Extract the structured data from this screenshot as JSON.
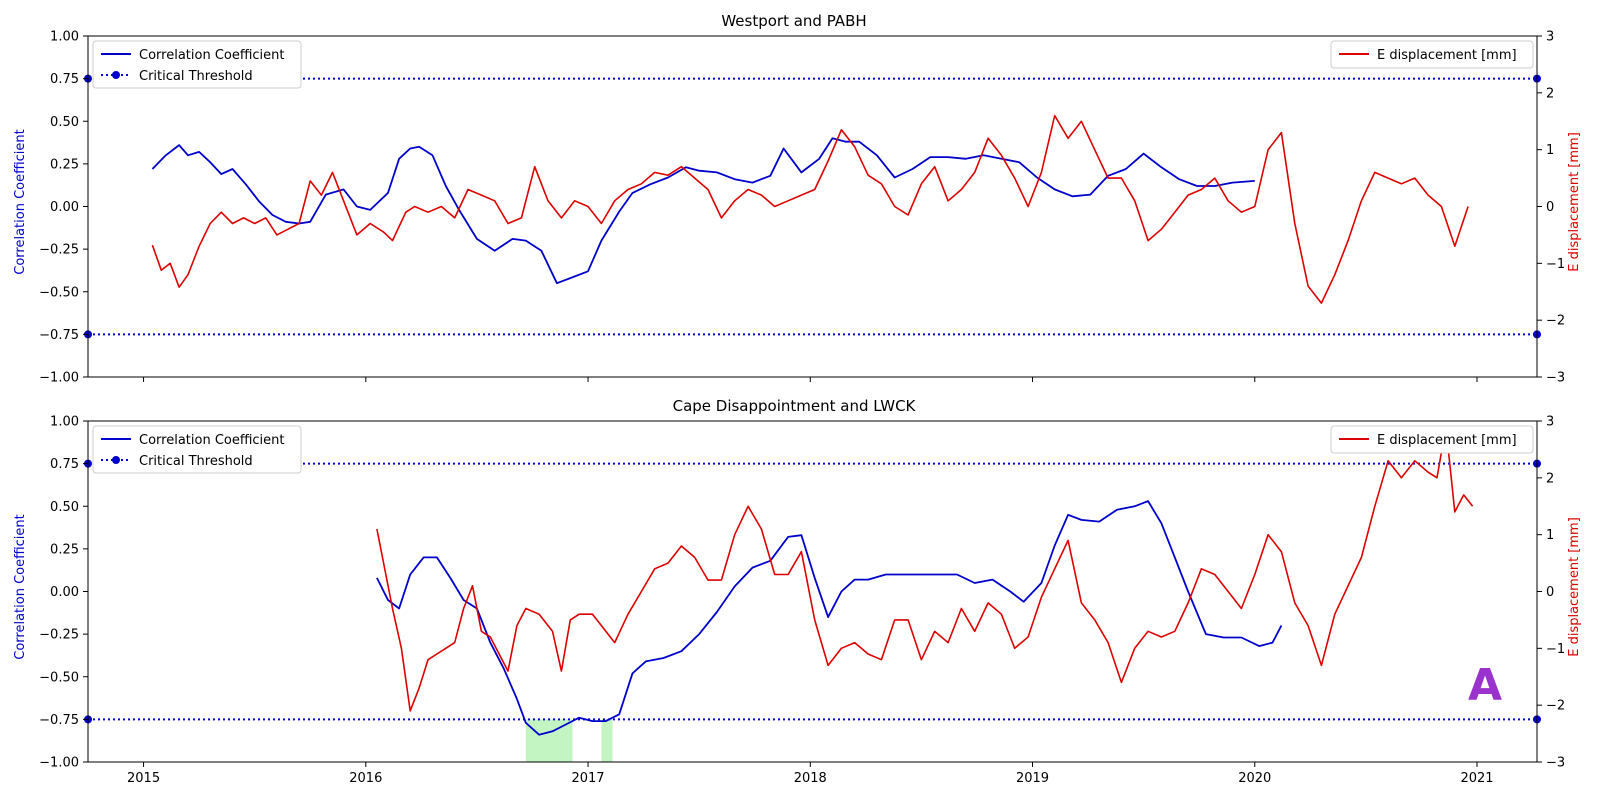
{
  "chart_data": [
    {
      "type": "line",
      "title": "Westport and PABH",
      "ylabel": "Correlation Coefficient",
      "ylabel_right": "E displacement [mm]",
      "xlim": [
        2014.75,
        2021.27
      ],
      "ylim": [
        -1.0,
        1.0
      ],
      "ylim_right": [
        -3,
        3
      ],
      "x_ticks": [
        2015,
        2016,
        2017,
        2018,
        2019,
        2020,
        2021
      ],
      "x_tick_labels": [
        "2015",
        "2016",
        "2017",
        "2018",
        "2019",
        "2020",
        "2021"
      ],
      "show_x_tick_labels": false,
      "y_ticks": [
        -1.0,
        -0.75,
        -0.5,
        -0.25,
        0.0,
        0.25,
        0.5,
        0.75,
        1.0
      ],
      "y_tick_labels": [
        "−1.00",
        "−0.75",
        "−0.50",
        "−0.25",
        "0.00",
        "0.25",
        "0.50",
        "0.75",
        "1.00"
      ],
      "y_ticks_right": [
        -3,
        -2,
        -1,
        0,
        1,
        2,
        3
      ],
      "y_tick_labels_right": [
        "−3",
        "−2",
        "−1",
        "0",
        "1",
        "2",
        "3"
      ],
      "thresholds": [
        0.75,
        -0.75
      ],
      "legend_left": [
        "Correlation Coefficient",
        "Critical Threshold"
      ],
      "legend_right": [
        "E displacement [mm]"
      ],
      "legend_left_position": "top-left",
      "legend_right_position": "top-right",
      "colors": {
        "correlation": "#0000cc",
        "threshold": "#0000cc",
        "displacement": "#dd0000"
      },
      "shaded_regions": [],
      "series": [
        {
          "name": "Correlation Coefficient",
          "axis": "left",
          "x": [
            2015.04,
            2015.1,
            2015.16,
            2015.2,
            2015.25,
            2015.3,
            2015.35,
            2015.4,
            2015.46,
            2015.52,
            2015.58,
            2015.64,
            2015.7,
            2015.75,
            2015.82,
            2015.9,
            2015.96,
            2016.02,
            2016.1,
            2016.15,
            2016.2,
            2016.24,
            2016.3,
            2016.36,
            2016.42,
            2016.5,
            2016.58,
            2016.66,
            2016.72,
            2016.79,
            2016.86,
            2016.92,
            2017.0,
            2017.06,
            2017.14,
            2017.2,
            2017.28,
            2017.36,
            2017.44,
            2017.5,
            2017.58,
            2017.66,
            2017.74,
            2017.82,
            2017.88,
            2017.96,
            2018.04,
            2018.1,
            2018.16,
            2018.22,
            2018.3,
            2018.38,
            2018.46,
            2018.54,
            2018.62,
            2018.7,
            2018.78,
            2018.86,
            2018.94,
            2019.02,
            2019.1,
            2019.18,
            2019.26,
            2019.34,
            2019.42,
            2019.5,
            2019.58,
            2019.66,
            2019.74,
            2019.82,
            2019.9,
            2020.0
          ],
          "y": [
            0.22,
            0.3,
            0.36,
            0.3,
            0.32,
            0.26,
            0.19,
            0.22,
            0.13,
            0.03,
            -0.05,
            -0.09,
            -0.1,
            -0.09,
            0.07,
            0.1,
            0.0,
            -0.02,
            0.08,
            0.28,
            0.34,
            0.35,
            0.3,
            0.12,
            -0.02,
            -0.19,
            -0.26,
            -0.19,
            -0.2,
            -0.26,
            -0.45,
            -0.42,
            -0.38,
            -0.2,
            -0.03,
            0.08,
            0.13,
            0.17,
            0.23,
            0.21,
            0.2,
            0.16,
            0.14,
            0.18,
            0.34,
            0.2,
            0.28,
            0.4,
            0.38,
            0.38,
            0.3,
            0.17,
            0.22,
            0.29,
            0.29,
            0.28,
            0.3,
            0.28,
            0.26,
            0.17,
            0.1,
            0.06,
            0.07,
            0.18,
            0.22,
            0.31,
            0.23,
            0.16,
            0.12,
            0.12,
            0.14,
            0.15
          ]
        },
        {
          "name": "E displacement [mm]",
          "axis": "right",
          "x": [
            2015.04,
            2015.08,
            2015.12,
            2015.16,
            2015.2,
            2015.25,
            2015.3,
            2015.35,
            2015.4,
            2015.45,
            2015.5,
            2015.55,
            2015.6,
            2015.65,
            2015.7,
            2015.75,
            2015.8,
            2015.85,
            2015.9,
            2015.96,
            2016.02,
            2016.08,
            2016.12,
            2016.18,
            2016.22,
            2016.28,
            2016.34,
            2016.4,
            2016.46,
            2016.52,
            2016.58,
            2016.64,
            2016.7,
            2016.76,
            2016.82,
            2016.88,
            2016.94,
            2017.0,
            2017.06,
            2017.12,
            2017.18,
            2017.24,
            2017.3,
            2017.36,
            2017.42,
            2017.48,
            2017.54,
            2017.6,
            2017.66,
            2017.72,
            2017.78,
            2017.84,
            2017.9,
            2017.96,
            2018.02,
            2018.08,
            2018.14,
            2018.2,
            2018.26,
            2018.32,
            2018.38,
            2018.44,
            2018.5,
            2018.56,
            2018.62,
            2018.68,
            2018.74,
            2018.8,
            2018.86,
            2018.92,
            2018.98,
            2019.04,
            2019.1,
            2019.16,
            2019.22,
            2019.28,
            2019.34,
            2019.4,
            2019.46,
            2019.52,
            2019.58,
            2019.64,
            2019.7,
            2019.76,
            2019.82,
            2019.88,
            2019.94,
            2020.0,
            2020.06,
            2020.12,
            2020.18,
            2020.24,
            2020.3,
            2020.36,
            2020.42,
            2020.48,
            2020.54,
            2020.6,
            2020.66,
            2020.72,
            2020.78,
            2020.84,
            2020.9,
            2020.96
          ],
          "y": [
            -0.68,
            -1.12,
            -1.0,
            -1.42,
            -1.2,
            -0.7,
            -0.3,
            -0.1,
            -0.3,
            -0.2,
            -0.3,
            -0.2,
            -0.5,
            -0.4,
            -0.3,
            0.45,
            0.2,
            0.6,
            0.1,
            -0.5,
            -0.3,
            -0.45,
            -0.6,
            -0.1,
            0.0,
            -0.1,
            0.0,
            -0.2,
            0.3,
            0.2,
            0.1,
            -0.3,
            -0.2,
            0.7,
            0.1,
            -0.2,
            0.1,
            0.0,
            -0.3,
            0.1,
            0.3,
            0.4,
            0.6,
            0.55,
            0.7,
            0.5,
            0.3,
            -0.2,
            0.1,
            0.3,
            0.2,
            0.0,
            0.1,
            0.2,
            0.3,
            0.8,
            1.35,
            1.05,
            0.55,
            0.4,
            0.0,
            -0.15,
            0.4,
            0.7,
            0.1,
            0.3,
            0.6,
            1.2,
            0.9,
            0.5,
            0.0,
            0.6,
            1.6,
            1.2,
            1.5,
            1.0,
            0.5,
            0.5,
            0.1,
            -0.6,
            -0.4,
            -0.1,
            0.2,
            0.3,
            0.5,
            0.1,
            -0.1,
            0.0,
            1.0,
            1.3,
            -0.3,
            -1.4,
            -1.7,
            -1.2,
            -0.6,
            0.1,
            0.6,
            0.5,
            0.4,
            0.5,
            0.2,
            0.0,
            -0.7,
            0.0
          ]
        }
      ]
    },
    {
      "type": "line",
      "title": "Cape Disappointment and LWCK",
      "ylabel": "Correlation Coefficient",
      "ylabel_right": "E displacement [mm]",
      "xlim": [
        2014.75,
        2021.27
      ],
      "ylim": [
        -1.0,
        1.0
      ],
      "ylim_right": [
        -3,
        3
      ],
      "x_ticks": [
        2015,
        2016,
        2017,
        2018,
        2019,
        2020,
        2021
      ],
      "x_tick_labels": [
        "2015",
        "2016",
        "2017",
        "2018",
        "2019",
        "2020",
        "2021"
      ],
      "show_x_tick_labels": true,
      "y_ticks": [
        -1.0,
        -0.75,
        -0.5,
        -0.25,
        0.0,
        0.25,
        0.5,
        0.75,
        1.0
      ],
      "y_tick_labels": [
        "−1.00",
        "−0.75",
        "−0.50",
        "−0.25",
        "0.00",
        "0.25",
        "0.50",
        "0.75",
        "1.00"
      ],
      "y_ticks_right": [
        -3,
        -2,
        -1,
        0,
        1,
        2,
        3
      ],
      "y_tick_labels_right": [
        "−3",
        "−2",
        "−1",
        "0",
        "1",
        "2",
        "3"
      ],
      "thresholds": [
        0.75,
        -0.75
      ],
      "legend_left": [
        "Correlation Coefficient",
        "Critical Threshold"
      ],
      "legend_right": [
        "E displacement [mm]"
      ],
      "legend_left_position": "top-left",
      "legend_right_position": "top-right",
      "colors": {
        "correlation": "#0000cc",
        "threshold": "#0000cc",
        "displacement": "#dd0000",
        "shade": "#c2f5c2"
      },
      "shaded_regions": [
        [
          2016.72,
          2016.93
        ],
        [
          2017.06,
          2017.11
        ]
      ],
      "annotation": "A",
      "annotation_color": "#9933cc",
      "series": [
        {
          "name": "Correlation Coefficient",
          "axis": "left",
          "x": [
            2016.05,
            2016.1,
            2016.15,
            2016.2,
            2016.26,
            2016.32,
            2016.38,
            2016.44,
            2016.5,
            2016.56,
            2016.62,
            2016.68,
            2016.72,
            2016.78,
            2016.84,
            2016.9,
            2016.96,
            2017.02,
            2017.08,
            2017.14,
            2017.2,
            2017.26,
            2017.34,
            2017.42,
            2017.5,
            2017.58,
            2017.66,
            2017.74,
            2017.82,
            2017.9,
            2017.96,
            2018.02,
            2018.08,
            2018.14,
            2018.2,
            2018.26,
            2018.34,
            2018.42,
            2018.5,
            2018.58,
            2018.66,
            2018.74,
            2018.82,
            2018.9,
            2018.96,
            2019.04,
            2019.1,
            2019.16,
            2019.22,
            2019.3,
            2019.38,
            2019.46,
            2019.52,
            2019.58,
            2019.64,
            2019.7,
            2019.78,
            2019.86,
            2019.94,
            2020.02,
            2020.08,
            2020.12
          ],
          "y": [
            0.08,
            -0.05,
            -0.1,
            0.1,
            0.2,
            0.2,
            0.08,
            -0.05,
            -0.1,
            -0.3,
            -0.45,
            -0.63,
            -0.77,
            -0.84,
            -0.82,
            -0.78,
            -0.74,
            -0.76,
            -0.76,
            -0.72,
            -0.48,
            -0.41,
            -0.39,
            -0.35,
            -0.25,
            -0.12,
            0.03,
            0.14,
            0.18,
            0.32,
            0.33,
            0.08,
            -0.15,
            0.0,
            0.07,
            0.07,
            0.1,
            0.1,
            0.1,
            0.1,
            0.1,
            0.05,
            0.07,
            0.0,
            -0.06,
            0.05,
            0.27,
            0.45,
            0.42,
            0.41,
            0.48,
            0.5,
            0.53,
            0.4,
            0.2,
            0.0,
            -0.25,
            -0.27,
            -0.27,
            -0.32,
            -0.3,
            -0.2
          ]
        },
        {
          "name": "E displacement [mm]",
          "axis": "right",
          "x": [
            2016.05,
            2016.08,
            2016.12,
            2016.16,
            2016.2,
            2016.24,
            2016.28,
            2016.32,
            2016.36,
            2016.4,
            2016.44,
            2016.48,
            2016.52,
            2016.56,
            2016.6,
            2016.64,
            2016.68,
            2016.72,
            2016.78,
            2016.84,
            2016.88,
            2016.92,
            2016.96,
            2017.02,
            2017.08,
            2017.12,
            2017.18,
            2017.24,
            2017.3,
            2017.36,
            2017.42,
            2017.48,
            2017.54,
            2017.6,
            2017.66,
            2017.72,
            2017.78,
            2017.84,
            2017.9,
            2017.96,
            2018.02,
            2018.08,
            2018.14,
            2018.2,
            2018.26,
            2018.32,
            2018.38,
            2018.44,
            2018.5,
            2018.56,
            2018.62,
            2018.68,
            2018.74,
            2018.8,
            2018.86,
            2018.92,
            2018.98,
            2019.04,
            2019.1,
            2019.16,
            2019.22,
            2019.28,
            2019.34,
            2019.4,
            2019.46,
            2019.52,
            2019.58,
            2019.64,
            2019.7,
            2019.76,
            2019.82,
            2019.88,
            2019.94,
            2020.0,
            2020.06,
            2020.12,
            2020.18,
            2020.24,
            2020.3,
            2020.36,
            2020.42,
            2020.48,
            2020.54,
            2020.6,
            2020.66,
            2020.72,
            2020.78,
            2020.82,
            2020.86,
            2020.9,
            2020.94,
            2020.98
          ],
          "y": [
            1.1,
            0.5,
            -0.3,
            -1.0,
            -2.1,
            -1.7,
            -1.2,
            -1.1,
            -1.0,
            -0.9,
            -0.3,
            0.1,
            -0.7,
            -0.8,
            -1.1,
            -1.4,
            -0.6,
            -0.3,
            -0.4,
            -0.7,
            -1.4,
            -0.5,
            -0.4,
            -0.4,
            -0.7,
            -0.9,
            -0.4,
            0.0,
            0.4,
            0.5,
            0.8,
            0.6,
            0.2,
            0.2,
            1.0,
            1.5,
            1.1,
            0.3,
            0.3,
            0.7,
            -0.5,
            -1.3,
            -1.0,
            -0.9,
            -1.1,
            -1.2,
            -0.5,
            -0.5,
            -1.2,
            -0.7,
            -0.9,
            -0.3,
            -0.7,
            -0.2,
            -0.4,
            -1.0,
            -0.8,
            -0.1,
            0.4,
            0.9,
            -0.2,
            -0.5,
            -0.9,
            -1.6,
            -1.0,
            -0.7,
            -0.8,
            -0.7,
            -0.2,
            0.4,
            0.3,
            0.0,
            -0.3,
            0.3,
            1.0,
            0.7,
            -0.2,
            -0.6,
            -1.3,
            -0.4,
            0.1,
            0.6,
            1.5,
            2.3,
            2.0,
            2.3,
            2.1,
            2.0,
            2.9,
            1.4,
            1.7,
            1.5
          ]
        }
      ]
    }
  ]
}
